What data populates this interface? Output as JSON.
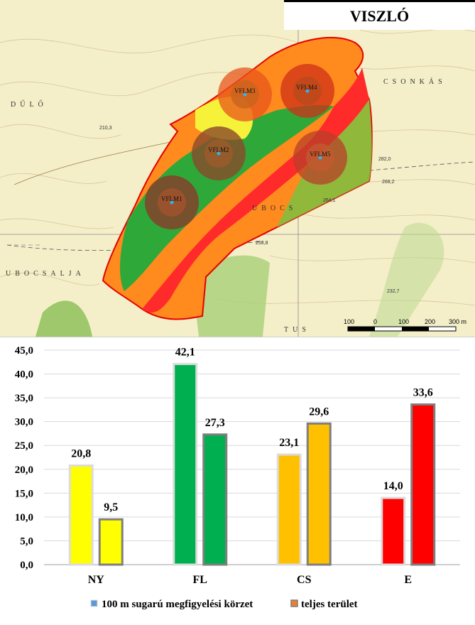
{
  "map": {
    "title": "VISZLÓ",
    "plots": [
      "VFLM1",
      "VFLM2",
      "VFLM3",
      "VFLM4",
      "VFLM5"
    ],
    "place_names": [
      "DŰLŐ",
      "CSONKÁS",
      "UBOCS",
      "UBOCSALJA",
      "TUS"
    ],
    "spot_heights": [
      "210,3",
      "282,0",
      "268,2",
      "264,1",
      "258,8",
      "232,7"
    ],
    "scale_labels": [
      "100",
      "0",
      "100",
      "200",
      "300 m"
    ]
  },
  "chart_data": {
    "type": "bar",
    "categories": [
      "NY",
      "FL",
      "CS",
      "E"
    ],
    "category_colors": [
      "#ffff00",
      "#00b050",
      "#ffc000",
      "#ff0000"
    ],
    "series": [
      {
        "name": "100 m sugarú megfigyelési körzet",
        "values": [
          20.8,
          42.1,
          23.1,
          14.0
        ],
        "value_labels": [
          "20,8",
          "42,1",
          "23,1",
          "14,0"
        ],
        "border_color": "#dcdcdc"
      },
      {
        "name": "teljes terület",
        "values": [
          9.5,
          27.3,
          29.6,
          33.6
        ],
        "value_labels": [
          "9,5",
          "27,3",
          "29,6",
          "33,6"
        ],
        "border_color": "#7f7f7f"
      }
    ],
    "y_ticks": [
      "0,0",
      "5,0",
      "10,0",
      "15,0",
      "20,0",
      "25,0",
      "30,0",
      "35,0",
      "40,0",
      "45,0"
    ],
    "ylim": [
      0,
      45
    ],
    "grid": true,
    "legend_position": "bottom"
  }
}
